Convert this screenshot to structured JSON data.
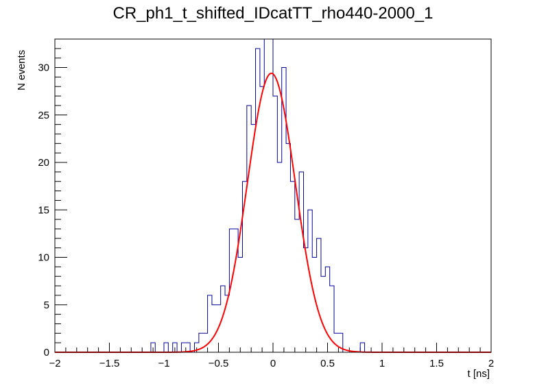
{
  "chart_data": {
    "type": "histogram",
    "title": "CR_ph1_t_shifted_IDcatTT_rho440-2000_1",
    "xlabel": "t [ns]",
    "ylabel": "N events",
    "xlim": [
      -2,
      2
    ],
    "ylim": [
      0,
      33
    ],
    "bin_width": 0.04,
    "x_ticks": [
      -2,
      -1.5,
      -1,
      -0.5,
      0,
      0.5,
      1,
      1.5,
      2
    ],
    "x_tick_labels": [
      "−2",
      "−1.5",
      "−1",
      "−0.5",
      "0",
      "0.5",
      "1",
      "1.5",
      "2"
    ],
    "y_ticks": [
      0,
      5,
      10,
      15,
      20,
      25,
      30
    ],
    "y_tick_labels": [
      "0",
      "5",
      "10",
      "15",
      "20",
      "25",
      "30"
    ],
    "histogram": {
      "bin_low_edges": [
        -1.12,
        -1.08,
        -1.04,
        -1.0,
        -0.96,
        -0.92,
        -0.88,
        -0.84,
        -0.8,
        -0.76,
        -0.72,
        -0.68,
        -0.64,
        -0.6,
        -0.56,
        -0.52,
        -0.48,
        -0.44,
        -0.4,
        -0.36,
        -0.32,
        -0.28,
        -0.24,
        -0.2,
        -0.16,
        -0.12,
        -0.08,
        -0.04,
        0.0,
        0.04,
        0.08,
        0.12,
        0.16,
        0.2,
        0.24,
        0.28,
        0.32,
        0.36,
        0.4,
        0.44,
        0.48,
        0.52,
        0.56,
        0.6,
        0.64,
        0.68,
        0.72,
        0.76,
        0.8
      ],
      "counts": [
        1,
        0,
        0,
        1,
        0,
        1,
        0,
        1,
        1,
        0,
        1,
        2,
        2,
        6,
        5,
        5,
        7,
        6,
        13,
        13,
        10,
        18,
        26,
        24,
        32,
        28,
        33,
        33,
        27,
        20,
        30,
        22,
        18,
        14,
        19,
        11,
        15,
        10,
        12,
        8,
        9,
        7,
        2,
        2,
        0,
        0,
        0,
        0,
        1
      ]
    },
    "fit": {
      "name": "gaussian",
      "amplitude": 29.4,
      "mean": -0.015,
      "sigma": 0.22
    },
    "colors": {
      "histogram": "#000099",
      "fit": "#ff0000",
      "axis": "#000000"
    },
    "grid": false,
    "legend": "none"
  }
}
